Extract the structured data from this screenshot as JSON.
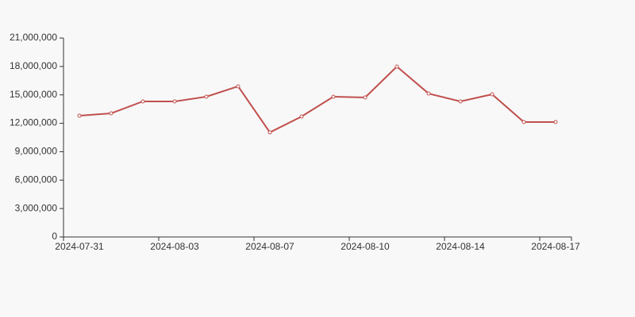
{
  "chart_data": {
    "type": "line",
    "categories": [
      "2024-07-31",
      null,
      null,
      "2024-08-03",
      null,
      null,
      "2024-08-07",
      null,
      null,
      "2024-08-10",
      null,
      null,
      "2024-08-14",
      null,
      null,
      "2024-08-17"
    ],
    "series": [
      {
        "color": "#c0504d",
        "values": [
          12800000,
          13050000,
          14310000,
          14310000,
          14810000,
          15900000,
          11040000,
          12720000,
          14810000,
          14730000,
          17990000,
          15140000,
          14310000,
          15060000,
          12130000,
          12130000
        ]
      }
    ],
    "ylim": [
      0,
      21000000
    ],
    "yticks": [
      0,
      {
        "value": 3000000,
        "label": "3,000,000"
      },
      {
        "value": 6000000,
        "label": "6,000,000"
      },
      {
        "value": 9000000,
        "label": "9,000,000"
      },
      {
        "value": 12000000,
        "label": "12,000,000"
      },
      {
        "value": 15000000,
        "label": "15,000,000"
      },
      {
        "value": 18000000,
        "label": "18,000,000"
      },
      {
        "value": 21000000,
        "label": "21,000,000"
      }
    ],
    "grid": false
  }
}
